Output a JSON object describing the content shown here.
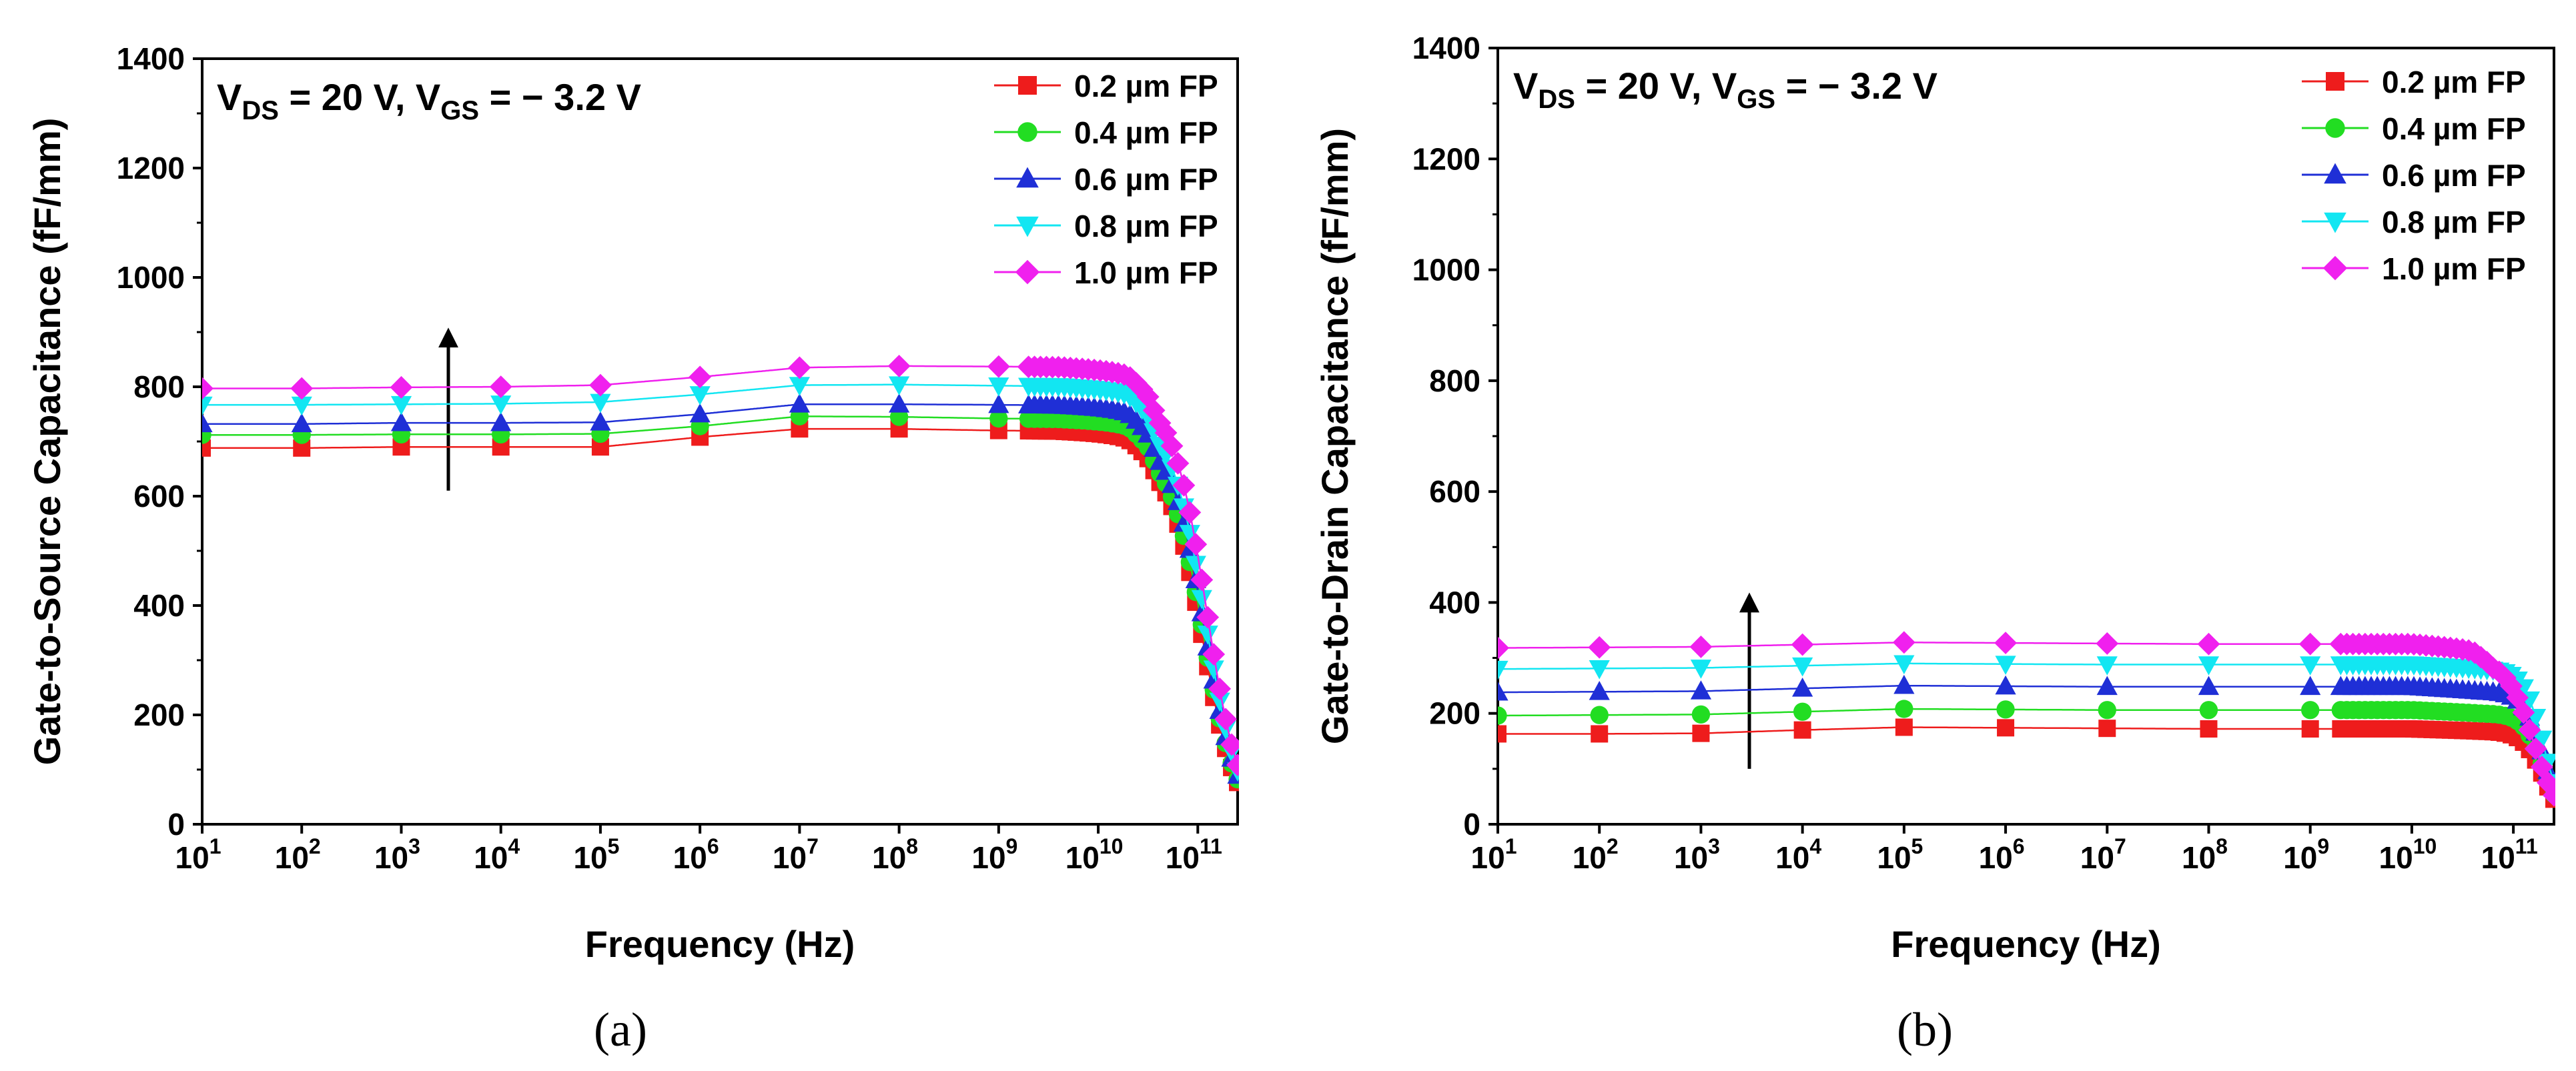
{
  "figure": {
    "panels": [
      "a",
      "b"
    ]
  },
  "colors": {
    "0.2": "#ee1c1c",
    "0.4": "#22dd22",
    "0.6": "#1f2fd6",
    "0.8": "#12e6f2",
    "1.0": "#f020ee",
    "axis": "#000000",
    "arrow": "#000000"
  },
  "chart_data": [
    {
      "panel": "a",
      "caption": "(a)",
      "type": "line",
      "title": "",
      "annotation": {
        "line": "V_DS = 20 V, V_GS = − 3.2 V",
        "v1": "V",
        "s1": "DS",
        "mid": " = 20 V, V",
        "s2": "GS",
        "end": " = − 3.2 V"
      },
      "xlabel": "Frequency (Hz)",
      "ylabel": "Gate-to-Source Capacitance (fF/mm)",
      "xscale": "log",
      "xlim_exp": [
        1,
        11.4
      ],
      "x_tick_exponents": [
        1,
        2,
        3,
        4,
        5,
        6,
        7,
        8,
        9,
        10,
        11
      ],
      "x_tick_base": "10",
      "x_tick_sup": [
        "1",
        "2",
        "3",
        "4",
        "5",
        "6",
        "7",
        "8",
        "9",
        "10",
        "11"
      ],
      "ylim": [
        0,
        1400
      ],
      "y_ticks": [
        0,
        200,
        400,
        600,
        800,
        1000,
        1200,
        1400
      ],
      "y_tick_labels": [
        "0",
        "200",
        "400",
        "600",
        "800",
        "1000",
        "1200",
        "1400"
      ],
      "legend_position": "top-right",
      "increase_arrow": {
        "x_exp": 3.5,
        "from": 610,
        "to": 890
      },
      "series": [
        {
          "name": "0.2 µm FP",
          "color_key": "0.2",
          "marker": "square",
          "base": [
            [
              1,
              688
            ],
            [
              2,
              688
            ],
            [
              3,
              690
            ],
            [
              4,
              690
            ],
            [
              5,
              690
            ],
            [
              6,
              708
            ],
            [
              7,
              723
            ],
            [
              8,
              723
            ],
            [
              9,
              720
            ],
            [
              9.6,
              719
            ],
            [
              10.3,
              713
            ],
            [
              10.5,
              695
            ],
            [
              10.6,
              675
            ]
          ],
          "rolloff": {
            "center_exp": 11.05,
            "width": 0.17
          }
        },
        {
          "name": "0.4 µm FP",
          "color_key": "0.4",
          "marker": "circle",
          "base": [
            [
              1,
              712
            ],
            [
              2,
              712
            ],
            [
              3,
              713
            ],
            [
              4,
              713
            ],
            [
              5,
              714
            ],
            [
              6,
              728
            ],
            [
              7,
              746
            ],
            [
              8,
              745
            ],
            [
              9,
              742
            ],
            [
              9.6,
              741
            ],
            [
              10.3,
              735
            ],
            [
              10.5,
              715
            ],
            [
              10.6,
              690
            ]
          ],
          "rolloff": {
            "center_exp": 11.06,
            "width": 0.17
          }
        },
        {
          "name": "0.6 µm FP",
          "color_key": "0.6",
          "marker": "triangle-up",
          "base": [
            [
              1,
              732
            ],
            [
              2,
              732
            ],
            [
              3,
              734
            ],
            [
              4,
              734
            ],
            [
              5,
              735
            ],
            [
              6,
              750
            ],
            [
              7,
              768
            ],
            [
              8,
              768
            ],
            [
              9,
              767
            ],
            [
              9.6,
              766
            ],
            [
              10.3,
              760
            ],
            [
              10.5,
              738
            ],
            [
              10.6,
              710
            ]
          ],
          "rolloff": {
            "center_exp": 11.07,
            "width": 0.17
          }
        },
        {
          "name": "0.8 µm FP",
          "color_key": "0.8",
          "marker": "triangle-down",
          "base": [
            [
              1,
              767
            ],
            [
              2,
              767
            ],
            [
              3,
              768
            ],
            [
              4,
              769
            ],
            [
              5,
              772
            ],
            [
              6,
              786
            ],
            [
              7,
              803
            ],
            [
              8,
              804
            ],
            [
              9,
              802
            ],
            [
              9.6,
              801
            ],
            [
              10.3,
              793
            ],
            [
              10.5,
              770
            ],
            [
              10.6,
              740
            ]
          ],
          "rolloff": {
            "center_exp": 11.08,
            "width": 0.17
          }
        },
        {
          "name": "1.0 µm FP",
          "color_key": "1.0",
          "marker": "diamond",
          "base": [
            [
              1,
              797
            ],
            [
              2,
              797
            ],
            [
              3,
              799
            ],
            [
              4,
              800
            ],
            [
              5,
              803
            ],
            [
              6,
              818
            ],
            [
              7,
              835
            ],
            [
              8,
              838
            ],
            [
              9,
              837
            ],
            [
              9.6,
              836
            ],
            [
              10.3,
              828
            ],
            [
              10.5,
              806
            ],
            [
              10.6,
              780
            ]
          ],
          "rolloff": {
            "center_exp": 11.09,
            "width": 0.17
          }
        }
      ]
    },
    {
      "panel": "b",
      "caption": "(b)",
      "type": "line",
      "title": "",
      "annotation": {
        "line": "V_DS = 20 V, V_GS = − 3.2 V",
        "v1": "V",
        "s1": "DS",
        "mid": " = 20 V, V",
        "s2": "GS",
        "end": " = − 3.2 V"
      },
      "xlabel": "Frequency (Hz)",
      "ylabel": "Gate-to-Drain Capacitance (fF/mm)",
      "xscale": "log",
      "xlim_exp": [
        1,
        11.4
      ],
      "x_tick_exponents": [
        1,
        2,
        3,
        4,
        5,
        6,
        7,
        8,
        9,
        10,
        11
      ],
      "x_tick_base": "10",
      "x_tick_sup": [
        "1",
        "2",
        "3",
        "4",
        "5",
        "6",
        "7",
        "8",
        "9",
        "10",
        "11"
      ],
      "ylim": [
        0,
        1400
      ],
      "y_ticks": [
        0,
        200,
        400,
        600,
        800,
        1000,
        1200,
        1400
      ],
      "y_tick_labels": [
        "0",
        "200",
        "400",
        "600",
        "800",
        "1000",
        "1200",
        "1400"
      ],
      "legend_position": "top-right",
      "increase_arrow": {
        "x_exp": 3.5,
        "from": 100,
        "to": 400
      },
      "series": [
        {
          "name": "0.2 µm FP",
          "color_key": "0.2",
          "marker": "square",
          "base": [
            [
              1,
              163
            ],
            [
              2,
              163
            ],
            [
              3,
              164
            ],
            [
              4,
              170
            ],
            [
              5,
              175
            ],
            [
              6,
              174
            ],
            [
              7,
              173
            ],
            [
              8,
              172
            ],
            [
              9,
              172
            ],
            [
              10,
              172
            ],
            [
              10.7,
              168
            ]
          ],
          "rolloff": {
            "center_exp": 11.3,
            "width": 0.1
          }
        },
        {
          "name": "0.4 µm FP",
          "color_key": "0.4",
          "marker": "circle",
          "base": [
            [
              1,
              196
            ],
            [
              2,
              197
            ],
            [
              3,
              198
            ],
            [
              4,
              203
            ],
            [
              5,
              208
            ],
            [
              6,
              207
            ],
            [
              7,
              206
            ],
            [
              8,
              206
            ],
            [
              9,
              206
            ],
            [
              10,
              206
            ],
            [
              10.7,
              200
            ]
          ],
          "rolloff": {
            "center_exp": 11.3,
            "width": 0.1
          }
        },
        {
          "name": "0.6 µm FP",
          "color_key": "0.6",
          "marker": "triangle-up",
          "base": [
            [
              1,
              238
            ],
            [
              2,
              239
            ],
            [
              3,
              240
            ],
            [
              4,
              245
            ],
            [
              5,
              250
            ],
            [
              6,
              249
            ],
            [
              7,
              248
            ],
            [
              8,
              248
            ],
            [
              9,
              248
            ],
            [
              10,
              248
            ],
            [
              10.7,
              240
            ]
          ],
          "rolloff": {
            "center_exp": 11.3,
            "width": 0.1
          }
        },
        {
          "name": "0.8 µm FP",
          "color_key": "0.8",
          "marker": "triangle-down",
          "base": [
            [
              1,
              280
            ],
            [
              2,
              281
            ],
            [
              3,
              282
            ],
            [
              4,
              286
            ],
            [
              5,
              290
            ],
            [
              6,
              289
            ],
            [
              7,
              288
            ],
            [
              8,
              288
            ],
            [
              9,
              288
            ],
            [
              10,
              288
            ],
            [
              10.7,
              280
            ]
          ],
          "rolloff": {
            "center_exp": 11.3,
            "width": 0.1
          }
        },
        {
          "name": "1.0 µm FP",
          "color_key": "1.0",
          "marker": "diamond",
          "base": [
            [
              1,
              318
            ],
            [
              2,
              319
            ],
            [
              3,
              320
            ],
            [
              4,
              324
            ],
            [
              5,
              328
            ],
            [
              6,
              327
            ],
            [
              7,
              326
            ],
            [
              8,
              325
            ],
            [
              9,
              325
            ],
            [
              10,
              325
            ],
            [
              10.6,
              315
            ],
            [
              10.8,
              295
            ]
          ],
          "rolloff": {
            "center_exp": 11.2,
            "width": 0.13
          }
        }
      ]
    }
  ]
}
